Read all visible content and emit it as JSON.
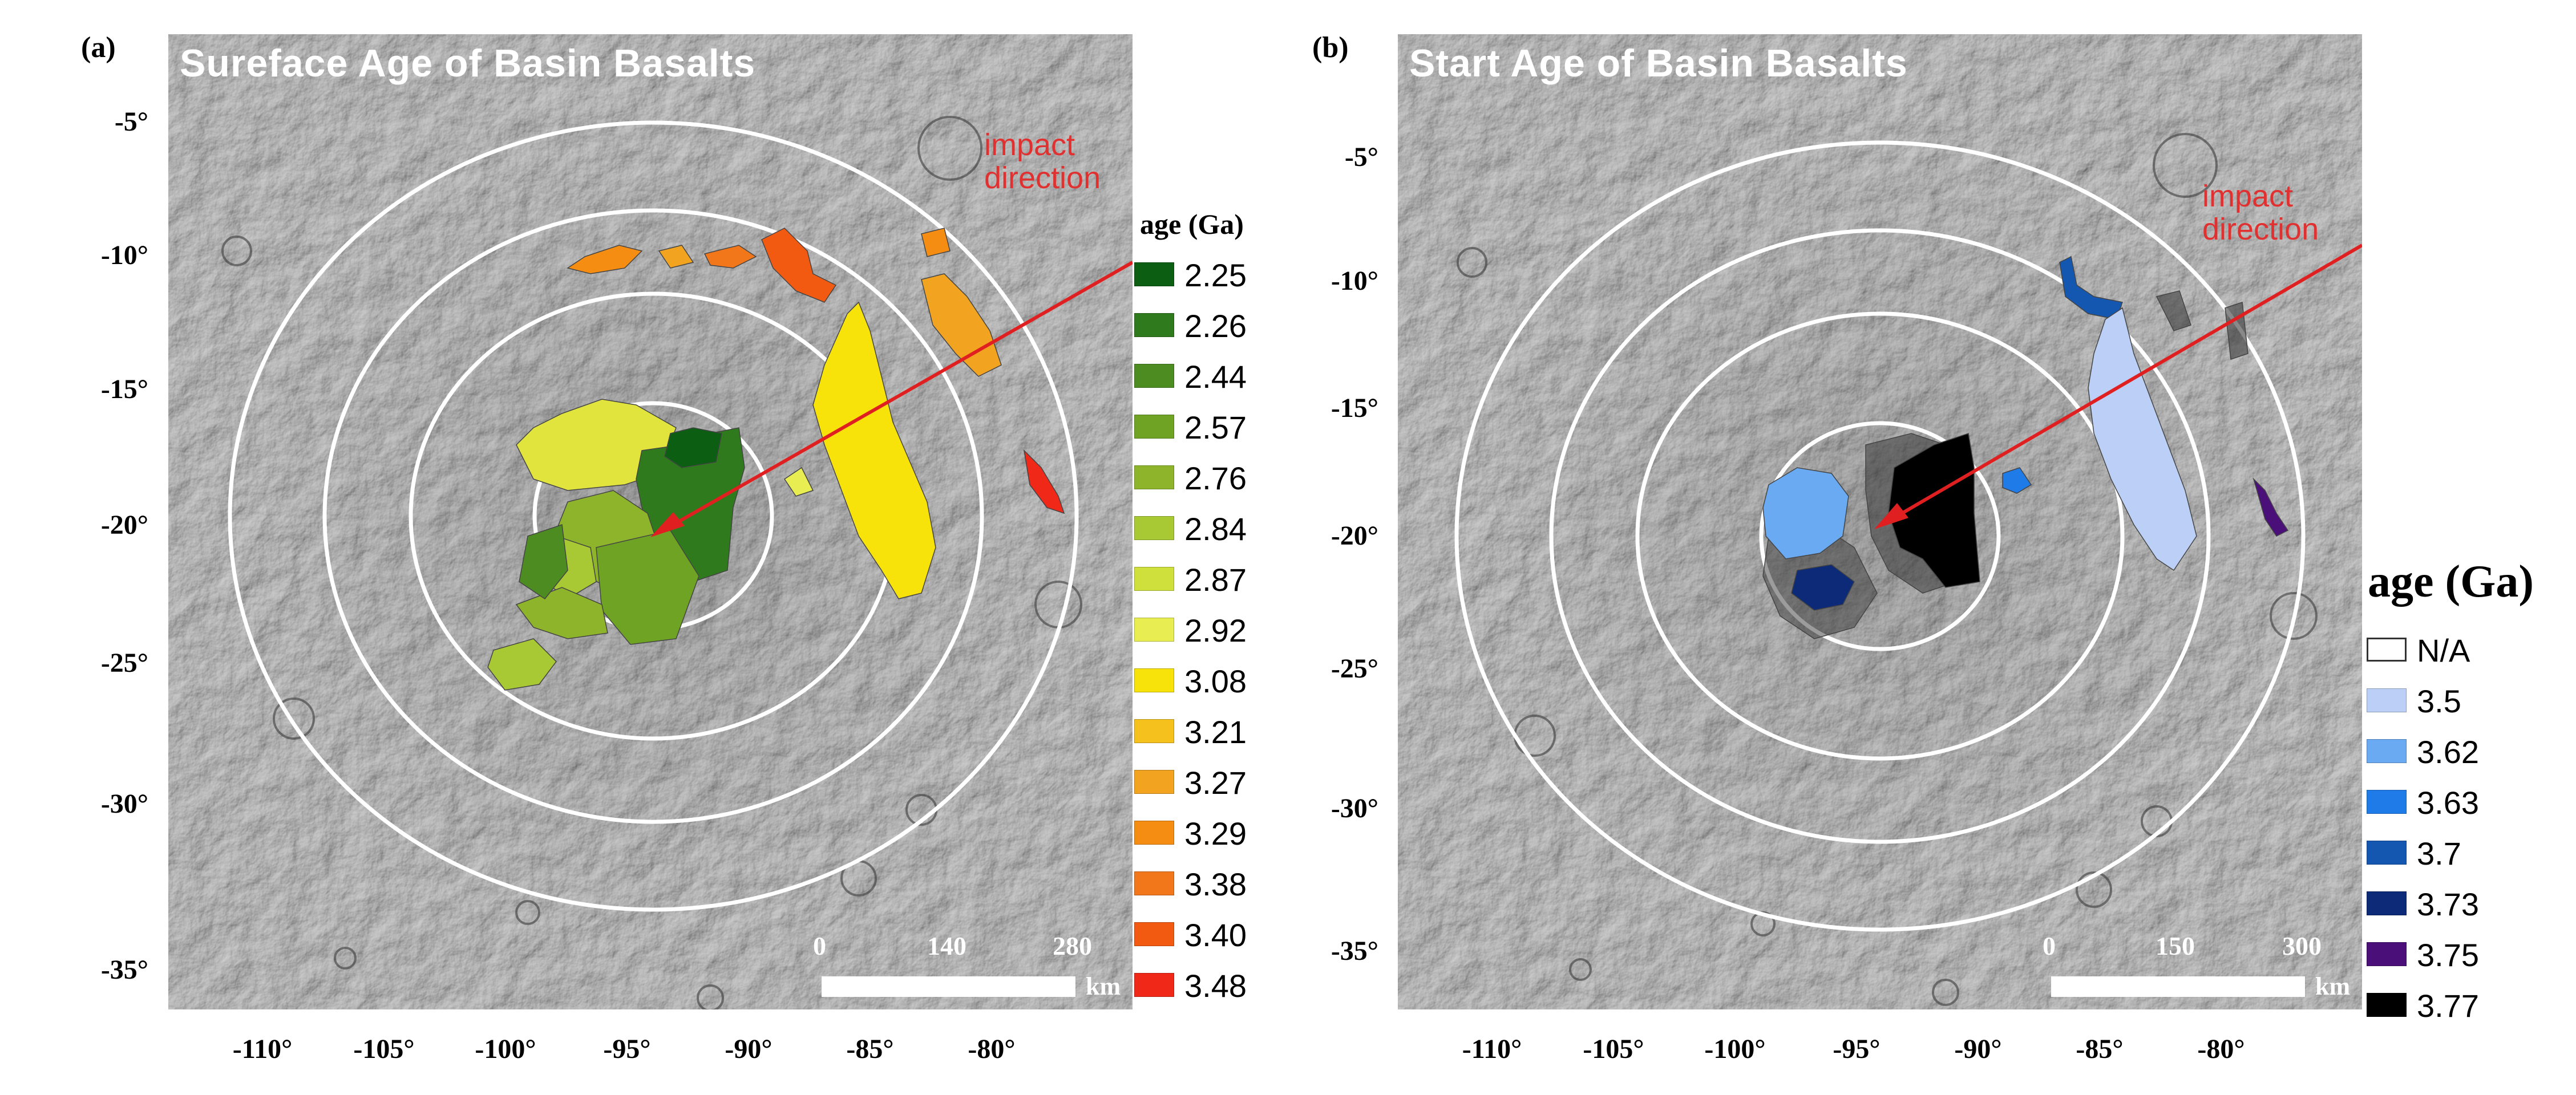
{
  "figure": {
    "panel_a": {
      "label": "(a)",
      "title": "Sureface Age of  Basin Basalts",
      "impact_label": [
        "impact",
        "direction"
      ],
      "y_ticks": [
        "-5°",
        "-10°",
        "-15°",
        "-20°",
        "-25°",
        "-30°",
        "-35°"
      ],
      "x_ticks": [
        "-110°",
        "-105°",
        "-100°",
        "-95°",
        "-90°",
        "-85°",
        "-80°"
      ],
      "scale_bar": {
        "ticks": [
          "0",
          "140",
          "280"
        ],
        "unit": "km"
      },
      "legend": {
        "title": "age (Ga)",
        "items": [
          {
            "label": "2.25",
            "color": "#0b5e12"
          },
          {
            "label": "2.26",
            "color": "#2f7a1c"
          },
          {
            "label": "2.44",
            "color": "#4c8c20"
          },
          {
            "label": "2.57",
            "color": "#6ea324"
          },
          {
            "label": "2.76",
            "color": "#8db42a"
          },
          {
            "label": "2.84",
            "color": "#a8c933"
          },
          {
            "label": "2.87",
            "color": "#cfe03c"
          },
          {
            "label": "2.92",
            "color": "#e8ee52"
          },
          {
            "label": "3.08",
            "color": "#f7e20a"
          },
          {
            "label": "3.21",
            "color": "#f5c11c"
          },
          {
            "label": "3.27",
            "color": "#f2a420"
          },
          {
            "label": "3.29",
            "color": "#f58d12"
          },
          {
            "label": "3.38",
            "color": "#f2761a"
          },
          {
            "label": "3.40",
            "color": "#f25a12"
          },
          {
            "label": "3.48",
            "color": "#f02818"
          }
        ]
      }
    },
    "panel_b": {
      "label": "(b)",
      "title": "Start Age of Basin Basalts",
      "impact_label": [
        "impact",
        "direction"
      ],
      "y_ticks": [
        "-5°",
        "-10°",
        "-15°",
        "-20°",
        "-25°",
        "-30°",
        "-35°"
      ],
      "x_ticks": [
        "-110°",
        "-105°",
        "-100°",
        "-95°",
        "-90°",
        "-85°",
        "-80°"
      ],
      "scale_bar": {
        "ticks": [
          "0",
          "150",
          "300"
        ],
        "unit": "km"
      },
      "legend": {
        "title": "age (Ga)",
        "items": [
          {
            "label": "N/A",
            "color": "#ffffff"
          },
          {
            "label": "3.5",
            "color": "#bcd0f7"
          },
          {
            "label": "3.62",
            "color": "#6aaaf2"
          },
          {
            "label": "3.63",
            "color": "#1f7be8"
          },
          {
            "label": "3.7",
            "color": "#1457b0"
          },
          {
            "label": "3.73",
            "color": "#0c2a78"
          },
          {
            "label": "3.75",
            "color": "#4b0f7a"
          },
          {
            "label": "3.77",
            "color": "#000000"
          }
        ]
      }
    },
    "colors": {
      "rings": "#ffffff",
      "arrow": "#e02020",
      "terrain": "#6e6e6e"
    }
  }
}
